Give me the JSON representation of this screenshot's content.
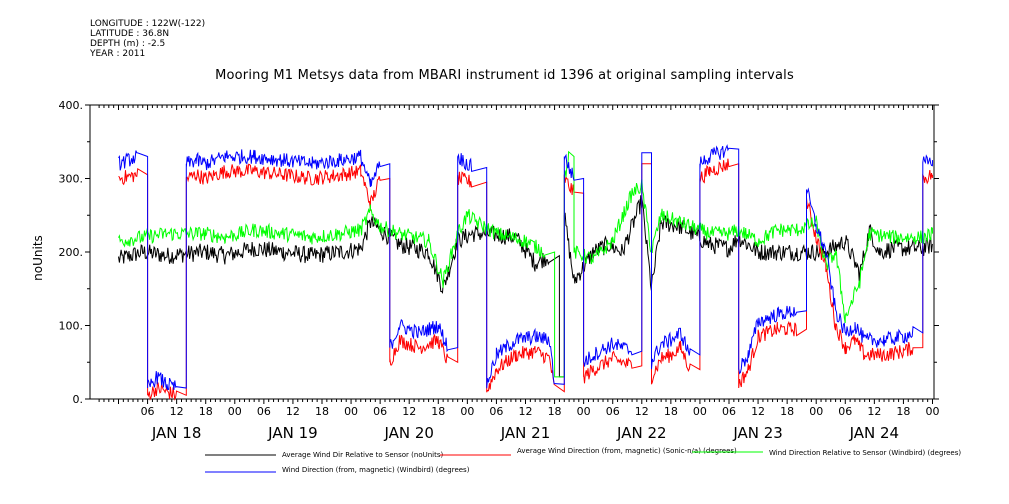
{
  "meta": {
    "longitude": "LONGITUDE : 122W(-122)",
    "latitude": "LATITUDE : 36.8N",
    "depth": "DEPTH (m) : -2.5",
    "year": "YEAR : 2011"
  },
  "chart_data": {
    "type": "line",
    "title": "Mooring M1 Metsys data from MBARI instrument id 1396 at original sampling intervals",
    "ylabel": "noUnits",
    "ylim": [
      0,
      400
    ],
    "yticks": [
      0,
      100,
      200,
      300,
      400
    ],
    "ytick_labels": [
      "0.",
      "100.",
      "200.",
      "300.",
      "400."
    ],
    "xlim_hours": [
      0,
      168
    ],
    "hour_ticks": [
      "06",
      "12",
      "18",
      "00",
      "06",
      "12",
      "18",
      "00",
      "06",
      "12",
      "18",
      "00",
      "06",
      "12",
      "18",
      "00",
      "06",
      "12",
      "18",
      "00",
      "06",
      "12",
      "18",
      "00",
      "06",
      "12",
      "18",
      "00"
    ],
    "day_labels": [
      "JAN 18",
      "JAN 19",
      "JAN 20",
      "JAN 21",
      "JAN 22",
      "JAN 23",
      "JAN 24"
    ],
    "grid": false,
    "legend_placement": "bottom",
    "series": [
      {
        "name": "Average Wind Dir Relative to Sensor (noUnits)",
        "color": "#000000",
        "noise": 12,
        "points": [
          [
            0,
            190
          ],
          [
            5,
            200
          ],
          [
            10,
            195
          ],
          [
            18,
            200
          ],
          [
            22,
            195
          ],
          [
            28,
            205
          ],
          [
            34,
            200
          ],
          [
            40,
            195
          ],
          [
            46,
            200
          ],
          [
            50,
            205
          ],
          [
            52,
            240
          ],
          [
            54,
            230
          ],
          [
            58,
            210
          ],
          [
            64,
            200
          ],
          [
            67,
            150
          ],
          [
            70,
            215
          ],
          [
            73,
            225
          ],
          [
            76,
            225
          ],
          [
            82,
            220
          ],
          [
            86,
            185
          ],
          [
            89,
            195
          ],
          [
            91,
            30
          ],
          [
            92,
            250
          ],
          [
            94,
            160
          ],
          [
            98,
            200
          ],
          [
            101,
            210
          ],
          [
            104,
            200
          ],
          [
            108,
            270
          ],
          [
            110,
            150
          ],
          [
            112,
            240
          ],
          [
            116,
            235
          ],
          [
            122,
            210
          ],
          [
            126,
            205
          ],
          [
            128,
            220
          ],
          [
            132,
            200
          ],
          [
            140,
            200
          ],
          [
            146,
            200
          ],
          [
            150,
            215
          ],
          [
            153,
            170
          ],
          [
            155,
            230
          ],
          [
            157,
            200
          ],
          [
            160,
            205
          ],
          [
            166,
            205
          ],
          [
            168,
            210
          ]
        ]
      },
      {
        "name": "Average Wind Direction (from, magnetic) (Sonic-n/a) (degrees)",
        "color": "#ff0000",
        "noise": 10,
        "points": [
          [
            0,
            300
          ],
          [
            4,
            305
          ],
          [
            6,
            5
          ],
          [
            8,
            15
          ],
          [
            10,
            10
          ],
          [
            12,
            5
          ],
          [
            14,
            300
          ],
          [
            16,
            305
          ],
          [
            18,
            300
          ],
          [
            22,
            310
          ],
          [
            28,
            310
          ],
          [
            34,
            305
          ],
          [
            40,
            300
          ],
          [
            46,
            305
          ],
          [
            50,
            310
          ],
          [
            52,
            265
          ],
          [
            54,
            300
          ],
          [
            56,
            50
          ],
          [
            58,
            80
          ],
          [
            62,
            70
          ],
          [
            66,
            80
          ],
          [
            68,
            50
          ],
          [
            70,
            300
          ],
          [
            73,
            295
          ],
          [
            76,
            10
          ],
          [
            78,
            40
          ],
          [
            82,
            60
          ],
          [
            86,
            65
          ],
          [
            89,
            55
          ],
          [
            90,
            10
          ],
          [
            92,
            300
          ],
          [
            94,
            280
          ],
          [
            96,
            30
          ],
          [
            98,
            40
          ],
          [
            102,
            55
          ],
          [
            106,
            45
          ],
          [
            108,
            320
          ],
          [
            110,
            30
          ],
          [
            112,
            55
          ],
          [
            114,
            60
          ],
          [
            116,
            70
          ],
          [
            118,
            40
          ],
          [
            120,
            300
          ],
          [
            122,
            310
          ],
          [
            126,
            320
          ],
          [
            128,
            20
          ],
          [
            130,
            40
          ],
          [
            132,
            85
          ],
          [
            136,
            95
          ],
          [
            140,
            95
          ],
          [
            142,
            270
          ],
          [
            144,
            220
          ],
          [
            146,
            180
          ],
          [
            148,
            100
          ],
          [
            150,
            70
          ],
          [
            152,
            80
          ],
          [
            154,
            60
          ],
          [
            158,
            60
          ],
          [
            162,
            65
          ],
          [
            164,
            70
          ],
          [
            166,
            300
          ],
          [
            168,
            305
          ]
        ]
      },
      {
        "name": "Wind Direction Relative to Sensor (Windbird) (degrees)",
        "color": "#00ff00",
        "noise": 10,
        "points": [
          [
            0,
            215
          ],
          [
            5,
            220
          ],
          [
            10,
            225
          ],
          [
            18,
            225
          ],
          [
            22,
            220
          ],
          [
            28,
            230
          ],
          [
            34,
            225
          ],
          [
            40,
            220
          ],
          [
            46,
            225
          ],
          [
            50,
            230
          ],
          [
            52,
            255
          ],
          [
            54,
            235
          ],
          [
            58,
            225
          ],
          [
            64,
            215
          ],
          [
            67,
            160
          ],
          [
            70,
            225
          ],
          [
            72,
            250
          ],
          [
            74,
            240
          ],
          [
            78,
            225
          ],
          [
            84,
            215
          ],
          [
            88,
            200
          ],
          [
            90,
            30
          ],
          [
            92,
            300
          ],
          [
            93,
            330
          ],
          [
            94,
            200
          ],
          [
            98,
            190
          ],
          [
            102,
            215
          ],
          [
            106,
            280
          ],
          [
            108,
            290
          ],
          [
            110,
            200
          ],
          [
            112,
            250
          ],
          [
            116,
            240
          ],
          [
            122,
            225
          ],
          [
            126,
            225
          ],
          [
            128,
            230
          ],
          [
            132,
            215
          ],
          [
            136,
            230
          ],
          [
            140,
            230
          ],
          [
            144,
            240
          ],
          [
            146,
            180
          ],
          [
            148,
            200
          ],
          [
            150,
            110
          ],
          [
            153,
            160
          ],
          [
            155,
            225
          ],
          [
            160,
            220
          ],
          [
            166,
            220
          ],
          [
            168,
            225
          ]
        ]
      },
      {
        "name": "Wind Direction (from, magnetic) (Windbird) (degrees)",
        "color": "#0000ff",
        "noise": 10,
        "points": [
          [
            0,
            320
          ],
          [
            4,
            330
          ],
          [
            6,
            15
          ],
          [
            8,
            30
          ],
          [
            10,
            20
          ],
          [
            12,
            15
          ],
          [
            14,
            320
          ],
          [
            16,
            325
          ],
          [
            18,
            320
          ],
          [
            22,
            330
          ],
          [
            28,
            330
          ],
          [
            34,
            325
          ],
          [
            40,
            320
          ],
          [
            46,
            325
          ],
          [
            50,
            330
          ],
          [
            52,
            290
          ],
          [
            54,
            320
          ],
          [
            56,
            70
          ],
          [
            58,
            100
          ],
          [
            62,
            90
          ],
          [
            66,
            100
          ],
          [
            68,
            70
          ],
          [
            70,
            330
          ],
          [
            73,
            315
          ],
          [
            76,
            20
          ],
          [
            78,
            60
          ],
          [
            82,
            80
          ],
          [
            86,
            85
          ],
          [
            89,
            80
          ],
          [
            90,
            20
          ],
          [
            92,
            330
          ],
          [
            94,
            300
          ],
          [
            96,
            50
          ],
          [
            98,
            60
          ],
          [
            102,
            75
          ],
          [
            106,
            65
          ],
          [
            108,
            335
          ],
          [
            110,
            50
          ],
          [
            112,
            75
          ],
          [
            114,
            80
          ],
          [
            116,
            90
          ],
          [
            118,
            60
          ],
          [
            120,
            320
          ],
          [
            122,
            330
          ],
          [
            126,
            340
          ],
          [
            128,
            40
          ],
          [
            130,
            60
          ],
          [
            132,
            105
          ],
          [
            136,
            115
          ],
          [
            140,
            120
          ],
          [
            142,
            285
          ],
          [
            144,
            235
          ],
          [
            146,
            200
          ],
          [
            148,
            120
          ],
          [
            150,
            90
          ],
          [
            152,
            100
          ],
          [
            154,
            80
          ],
          [
            158,
            80
          ],
          [
            162,
            85
          ],
          [
            164,
            90
          ],
          [
            166,
            320
          ],
          [
            168,
            325
          ]
        ]
      }
    ]
  }
}
